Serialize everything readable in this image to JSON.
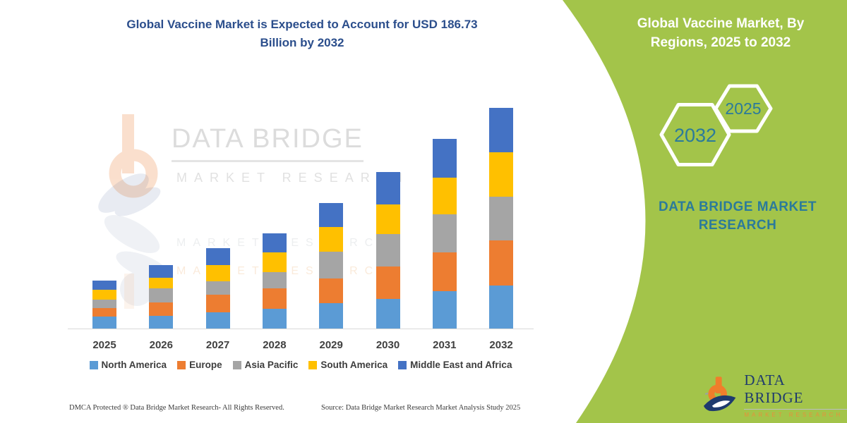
{
  "main": {
    "title_line1": "Global Vaccine Market is Expected to Account for USD 186.73",
    "title_line2": "Billion by 2032",
    "title_color": "#2B4E8C"
  },
  "chart_data": {
    "type": "bar",
    "stacked": true,
    "title": "Global Vaccine Market is Expected to Account for USD 186.73 Billion by 2032",
    "unit": "USD Billion",
    "categories": [
      "2025",
      "2026",
      "2027",
      "2028",
      "2029",
      "2030",
      "2031",
      "2032"
    ],
    "series": [
      {
        "name": "North America",
        "color": "#5B9BD5",
        "values": [
          10.3,
          10.7,
          13.6,
          17.0,
          21.5,
          25.3,
          31.8,
          36.4
        ]
      },
      {
        "name": "Europe",
        "color": "#ED7D31",
        "values": [
          7.0,
          11.5,
          14.8,
          16.9,
          20.9,
          27.5,
          32.5,
          38.4
        ]
      },
      {
        "name": "Asia Pacific",
        "color": "#A5A5A5",
        "values": [
          7.3,
          11.9,
          11.5,
          13.9,
          22.9,
          26.9,
          32.4,
          36.7
        ]
      },
      {
        "name": "South America",
        "color": "#FFC000",
        "values": [
          8.5,
          9.0,
          13.6,
          16.4,
          20.9,
          25.3,
          30.9,
          37.8
        ]
      },
      {
        "name": "Middle East and Africa",
        "color": "#4472C4",
        "values": [
          7.4,
          10.7,
          14.3,
          16.5,
          19.9,
          27.5,
          32.8,
          37.4
        ]
      }
    ],
    "totals_usd_billion": [
      40.5,
      53.8,
      67.8,
      80.7,
      106.1,
      132.5,
      160.4,
      186.73
    ],
    "value_axis_visible": false,
    "grid": false,
    "legend_position": "bottom"
  },
  "watermark": {
    "brand": "DATA BRIDGE",
    "sub": "MARKET RESEARCH"
  },
  "panel": {
    "heading_line1": "Global Vaccine Market, By",
    "heading_line2": "Regions, 2025 to 2032",
    "hex_large_label": "2032",
    "hex_small_label": "2025",
    "brand_line1": "DATA BRIDGE MARKET",
    "brand_line2": "RESEARCH",
    "colors": {
      "green": "#A3C44A",
      "teal": "#2B7A9B"
    }
  },
  "logo": {
    "name": "DATA BRIDGE",
    "tagline": "MARKET RESEARCH"
  },
  "footer": {
    "dmca": "DMCA Protected ® Data Bridge Market Research-  All Rights Reserved.",
    "source": "Source: Data Bridge Market Research  Market Analysis Study 2025"
  }
}
